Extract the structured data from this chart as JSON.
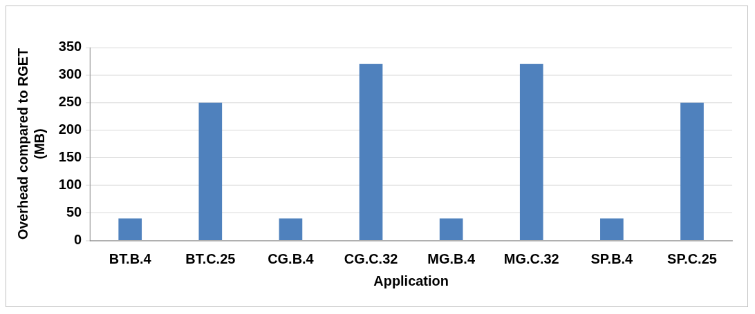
{
  "chart_data": {
    "type": "bar",
    "xlabel": "Application",
    "ylabel": "Overhead compared to RGET\n(MB)",
    "categories": [
      "BT.B.4",
      "BT.C.25",
      "CG.B.4",
      "CG.C.32",
      "MG.B.4",
      "MG.C.32",
      "SP.B.4",
      "SP.C.25"
    ],
    "values": [
      40,
      250,
      40,
      320,
      40,
      320,
      40,
      250
    ],
    "color": "#4f81bd",
    "ylim": [
      0,
      350
    ],
    "yticks": [
      0,
      50,
      100,
      150,
      200,
      250,
      300,
      350
    ],
    "grid": "y",
    "legend": false
  }
}
